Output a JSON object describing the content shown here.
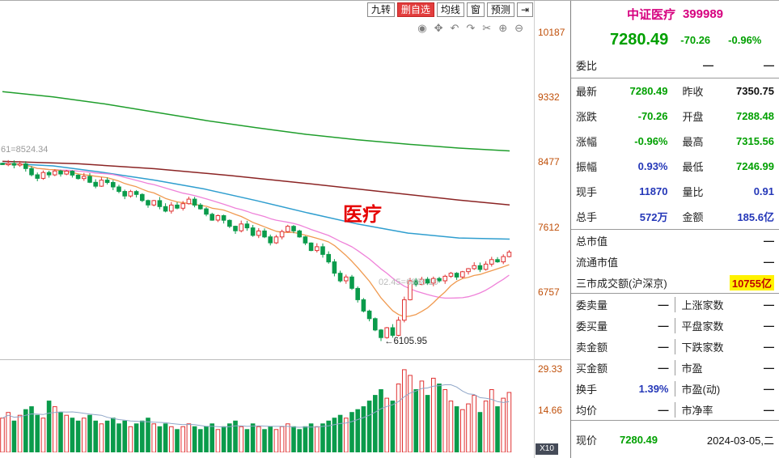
{
  "colors": {
    "up": "#e03232",
    "down": "#0a9b4b",
    "ma10": "#f09a50",
    "ma20": "#ef82d9",
    "watermark": "#e60000"
  },
  "toolbar": {
    "buttons": [
      {
        "name": "nine-turn-button",
        "label": "九转",
        "style": "normal"
      },
      {
        "name": "delete-watchlist-button",
        "label": "删自选",
        "style": "danger"
      },
      {
        "name": "ma-lines-button",
        "label": "均线",
        "style": "normal"
      },
      {
        "name": "window-button",
        "label": "窗",
        "style": "normal"
      },
      {
        "name": "forecast-button",
        "label": "预测",
        "style": "normal"
      },
      {
        "name": "jump-to-latest-button",
        "label": "⇥",
        "style": "normal"
      }
    ],
    "icons": [
      {
        "name": "eye-icon",
        "glyph": "◉"
      },
      {
        "name": "pan-hand-icon",
        "glyph": "✥"
      },
      {
        "name": "undo-icon",
        "glyph": "↶"
      },
      {
        "name": "redo-icon",
        "glyph": "↷"
      },
      {
        "name": "scissors-icon",
        "glyph": "✂"
      },
      {
        "name": "zoom-in-icon",
        "glyph": "⊕"
      },
      {
        "name": "zoom-out-icon",
        "glyph": "⊖"
      }
    ]
  },
  "chart_data": {
    "type": "candlestick",
    "symbol": "中证医疗 399989",
    "watermark": "医疗",
    "price_axis_ticks": [
      "10187",
      "9332",
      "8477",
      "7612",
      "6757"
    ],
    "volume_axis_ticks": [
      "29.33",
      "14.66"
    ],
    "volume_unit_label": "X10",
    "low_annotation": "←6105.95",
    "low_price": 6105.95,
    "left_annotation": "61=8524.34",
    "mid_annotation": "02.45=6888.10",
    "closes": [
      8440,
      8452,
      8430,
      8446,
      8384,
      8302,
      8255,
      8332,
      8301,
      8352,
      8312,
      8350,
      8298,
      8252,
      8281,
      8203,
      8152,
      8232,
      8201,
      8142,
      8082,
      8022,
      8081,
      8042,
      7962,
      7903,
      7961,
      7882,
      7822,
      7902,
      7861,
      7921,
      7981,
      7902,
      7852,
      7781,
      7703,
      7762,
      7701,
      7622,
      7562,
      7652,
      7601,
      7502,
      7561,
      7482,
      7403,
      7481,
      7552,
      7621,
      7561,
      7482,
      7401,
      7302,
      7352,
      7251,
      7152,
      7002,
      6902,
      6952,
      6802,
      6652,
      6502,
      6402,
      6252,
      6152,
      6282,
      6182,
      6382,
      6652,
      6902,
      6852,
      6922,
      6872,
      6932,
      6902,
      6962,
      7002,
      6952,
      7022,
      7062,
      7102,
      7052,
      7122,
      7182,
      7152,
      7222,
      7280.49
    ],
    "volumes": [
      12,
      14,
      11,
      13,
      15,
      16,
      13,
      12,
      18,
      16,
      14,
      13,
      12,
      11,
      12,
      13,
      11,
      10,
      11,
      12,
      10,
      11,
      9,
      10,
      11,
      12,
      10,
      9,
      10,
      9,
      8,
      9,
      10,
      9,
      8,
      9,
      10,
      8,
      9,
      10,
      11,
      9,
      8,
      10,
      9,
      8,
      9,
      8,
      9,
      10,
      9,
      8,
      9,
      10,
      9,
      10,
      11,
      12,
      13,
      12,
      14,
      15,
      16,
      18,
      20,
      22,
      19,
      18,
      24,
      29,
      27,
      22,
      25,
      20,
      26,
      24,
      22,
      18,
      16,
      15,
      17,
      20,
      14,
      18,
      22,
      16,
      19,
      21
    ],
    "overlays": [
      {
        "name": "ma-long-green",
        "color": "#1f9e2c",
        "points": [
          [
            0,
            9400
          ],
          [
            0.1,
            9330
          ],
          [
            0.2,
            9240
          ],
          [
            0.3,
            9130
          ],
          [
            0.4,
            9020
          ],
          [
            0.5,
            8925
          ],
          [
            0.6,
            8835
          ],
          [
            0.7,
            8765
          ],
          [
            0.8,
            8705
          ],
          [
            0.9,
            8655
          ],
          [
            1,
            8618
          ]
        ]
      },
      {
        "name": "ma-maroon",
        "color": "#8b2424",
        "points": [
          [
            0,
            8480
          ],
          [
            0.15,
            8448
          ],
          [
            0.3,
            8382
          ],
          [
            0.45,
            8292
          ],
          [
            0.6,
            8188
          ],
          [
            0.75,
            8078
          ],
          [
            0.9,
            7968
          ],
          [
            1,
            7905
          ]
        ]
      },
      {
        "name": "ma-blue",
        "color": "#2f9ecf",
        "points": [
          [
            0,
            8455
          ],
          [
            0.1,
            8420
          ],
          [
            0.2,
            8332
          ],
          [
            0.3,
            8232
          ],
          [
            0.4,
            8112
          ],
          [
            0.5,
            7962
          ],
          [
            0.6,
            7802
          ],
          [
            0.7,
            7652
          ],
          [
            0.8,
            7532
          ],
          [
            0.9,
            7468
          ],
          [
            1,
            7452
          ]
        ]
      }
    ]
  },
  "panel": {
    "title": "中证医疗",
    "code": "399989",
    "price": "7280.49",
    "change": "-70.26",
    "change_pct": "-0.96%",
    "weibi": {
      "label": "委比",
      "v1": "—",
      "v2": "—"
    },
    "stats": [
      {
        "label": "最新",
        "value": "7280.49",
        "color": "down"
      },
      {
        "label": "昨收",
        "value": "7350.75",
        "color": "flat"
      },
      {
        "label": "涨跌",
        "value": "-70.26",
        "color": "down"
      },
      {
        "label": "开盘",
        "value": "7288.48",
        "color": "down"
      },
      {
        "label": "涨幅",
        "value": "-0.96%",
        "color": "down"
      },
      {
        "label": "最高",
        "value": "7315.56",
        "color": "down"
      },
      {
        "label": "振幅",
        "value": "0.93%",
        "color": "neutral"
      },
      {
        "label": "最低",
        "value": "7246.99",
        "color": "down"
      },
      {
        "label": "现手",
        "value": "11870",
        "color": "neutral"
      },
      {
        "label": "量比",
        "value": "0.91",
        "color": "neutral"
      },
      {
        "label": "总手",
        "value": "572万",
        "color": "neutral"
      },
      {
        "label": "金额",
        "value": "185.6亿",
        "color": "neutral"
      }
    ],
    "caps": [
      {
        "label": "总市值",
        "value": "—",
        "highlight": false
      },
      {
        "label": "流通市值",
        "value": "—",
        "highlight": false
      },
      {
        "label": "三市成交额(沪深京)",
        "value": "10755亿",
        "highlight": true
      }
    ],
    "lower": [
      {
        "label": "委卖量",
        "value": "—",
        "color": "flat"
      },
      {
        "label": "上涨家数",
        "value": "—",
        "color": "flat"
      },
      {
        "label": "委买量",
        "value": "—",
        "color": "flat"
      },
      {
        "label": "平盘家数",
        "value": "—",
        "color": "flat"
      },
      {
        "label": "卖金额",
        "value": "—",
        "color": "flat"
      },
      {
        "label": "下跌家数",
        "value": "—",
        "color": "flat"
      },
      {
        "label": "买金额",
        "value": "—",
        "color": "flat"
      },
      {
        "label": "市盈",
        "value": "—",
        "color": "flat"
      },
      {
        "label": "换手",
        "value": "1.39%",
        "color": "neutral"
      },
      {
        "label": "市盈(动)",
        "value": "—",
        "color": "flat"
      },
      {
        "label": "均价",
        "value": "—",
        "color": "flat"
      },
      {
        "label": "市净率",
        "value": "—",
        "color": "flat"
      }
    ],
    "footer": {
      "label": "现价",
      "value": "7280.49",
      "date": "2024-03-05,二"
    }
  }
}
